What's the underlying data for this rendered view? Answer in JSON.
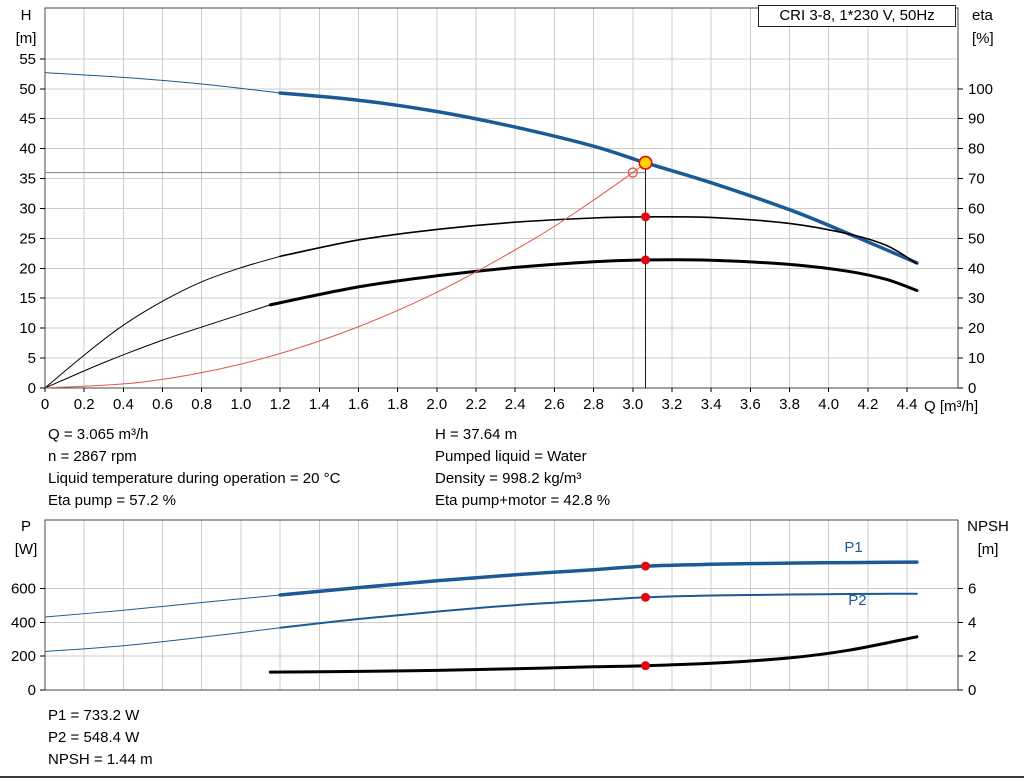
{
  "colors": {
    "curve_blue": "#1c5a96",
    "curve_black": "#000000",
    "system_red": "#e0564a",
    "marker_red": "#e30613",
    "duty_yellow": "#ffd700",
    "grid": "#cccccc",
    "frame": "#444444",
    "reference_gray": "#808080",
    "reference_dark": "#1a1a1a"
  },
  "chart_data": [
    {
      "type": "line",
      "name": "qh-eta-chart",
      "title": "CRI 3-8, 1*230 V, 50Hz",
      "x_axis": {
        "label": "Q [m³/h]",
        "min": 0,
        "max": 4.66,
        "tick_step": 0.2,
        "tick_end": 4.4,
        "show_labels": true
      },
      "y_left": {
        "label_lines": [
          "H",
          "[m]"
        ],
        "min": 0,
        "max": 63.5,
        "tick_step": 5,
        "tick_end": 55
      },
      "y_right": {
        "label_lines": [
          "eta",
          "[%]"
        ],
        "min": 0,
        "max": 127,
        "tick_step": 10,
        "tick_end": 100
      },
      "grid": true,
      "series": [
        {
          "name": "pump-curve-lead",
          "axis": "left",
          "color": "curve_blue",
          "width": 1,
          "points": [
            [
              0,
              52.7
            ],
            [
              0.4,
              51.9
            ],
            [
              0.8,
              50.8
            ],
            [
              1.2,
              49.3
            ]
          ]
        },
        {
          "name": "pump-curve",
          "axis": "left",
          "color": "curve_blue",
          "width": 3.5,
          "points": [
            [
              1.2,
              49.3
            ],
            [
              1.6,
              48.1
            ],
            [
              2.0,
              46.2
            ],
            [
              2.4,
              43.6
            ],
            [
              2.8,
              40.4
            ],
            [
              3.065,
              37.64
            ],
            [
              3.4,
              34.3
            ],
            [
              3.8,
              29.8
            ],
            [
              4.1,
              25.8
            ],
            [
              4.45,
              20.9
            ]
          ]
        },
        {
          "name": "eta-pump-lead",
          "axis": "right",
          "color": "curve_black",
          "width": 1,
          "points": [
            [
              0,
              0
            ],
            [
              0.2,
              11
            ],
            [
              0.4,
              21
            ],
            [
              0.6,
              29
            ],
            [
              0.8,
              35.5
            ],
            [
              1.0,
              40.2
            ],
            [
              1.2,
              44
            ]
          ]
        },
        {
          "name": "eta-pump-curve",
          "axis": "right",
          "color": "curve_black",
          "width": 1.6,
          "points": [
            [
              1.2,
              44
            ],
            [
              1.6,
              49.5
            ],
            [
              2.0,
              53
            ],
            [
              2.4,
              55.4
            ],
            [
              2.8,
              56.8
            ],
            [
              3.065,
              57.2
            ],
            [
              3.4,
              57.0
            ],
            [
              3.8,
              55.0
            ],
            [
              4.1,
              51.5
            ],
            [
              4.3,
              47.5
            ],
            [
              4.45,
              41.5
            ]
          ]
        },
        {
          "name": "eta-pump-motor-lead",
          "axis": "right",
          "color": "curve_black",
          "width": 1,
          "points": [
            [
              0,
              0
            ],
            [
              0.3,
              8.5
            ],
            [
              0.6,
              16
            ],
            [
              0.9,
              22.5
            ],
            [
              1.15,
              27.8
            ]
          ]
        },
        {
          "name": "eta-pump-motor-curve",
          "axis": "right",
          "color": "curve_black",
          "width": 3,
          "points": [
            [
              1.15,
              27.8
            ],
            [
              1.6,
              33.8
            ],
            [
              2.0,
              37.5
            ],
            [
              2.4,
              40.3
            ],
            [
              2.8,
              42.2
            ],
            [
              3.065,
              42.8
            ],
            [
              3.4,
              42.7
            ],
            [
              3.8,
              41.3
            ],
            [
              4.1,
              39.0
            ],
            [
              4.3,
              36.2
            ],
            [
              4.45,
              32.6
            ]
          ]
        },
        {
          "name": "system-curve",
          "axis": "left",
          "color": "system_red",
          "width": 1,
          "points": [
            [
              0,
              0
            ],
            [
              0.5,
              1.0
            ],
            [
              1.0,
              4.0
            ],
            [
              1.5,
              9.0
            ],
            [
              2.0,
              16.0
            ],
            [
              2.5,
              25.0
            ],
            [
              2.8,
              31.4
            ],
            [
              3.0,
              36.0
            ],
            [
              3.065,
              37.6
            ]
          ]
        }
      ],
      "reference": {
        "hline": {
          "v": 36.0,
          "q_start": 0,
          "q_end": 3.065
        },
        "vline": {
          "q": 3.065,
          "v_top": 37.64
        }
      },
      "markers": [
        {
          "name": "requested-duty-point",
          "axis": "left",
          "q": 3.0,
          "v": 36.0,
          "style": "open-red"
        },
        {
          "name": "duty-point",
          "axis": "left",
          "q": 3.065,
          "v": 37.64,
          "style": "duty"
        },
        {
          "name": "eta-pump-operating-point",
          "axis": "right",
          "q": 3.065,
          "v": 57.2,
          "style": "red-dot"
        },
        {
          "name": "eta-pump-motor-operating-point",
          "axis": "right",
          "q": 3.065,
          "v": 42.8,
          "style": "red-dot"
        }
      ],
      "labels": []
    },
    {
      "type": "line",
      "name": "power-npsh-chart",
      "title": "",
      "x_axis": {
        "label": "",
        "min": 0,
        "max": 4.66,
        "tick_step": 0.2,
        "tick_end": 4.4,
        "show_labels": false
      },
      "y_left": {
        "label_lines": [
          "P",
          "[W]"
        ],
        "min": 0,
        "max": 1006,
        "tick_step": 200,
        "tick_end": 600
      },
      "y_right": {
        "label_lines": [
          "NPSH",
          "[m]"
        ],
        "min": 0,
        "max": 10.06,
        "tick_step": 2,
        "tick_end": 6
      },
      "grid": true,
      "series": [
        {
          "name": "p1-lead",
          "axis": "left",
          "color": "curve_blue",
          "width": 1,
          "points": [
            [
              0,
              432
            ],
            [
              0.4,
              472
            ],
            [
              0.8,
              518
            ],
            [
              1.2,
              562
            ]
          ]
        },
        {
          "name": "p1-curve",
          "axis": "left",
          "color": "curve_blue",
          "width": 3.5,
          "points": [
            [
              1.2,
              562
            ],
            [
              1.6,
              606
            ],
            [
              2.0,
              646
            ],
            [
              2.4,
              682
            ],
            [
              2.8,
              712
            ],
            [
              3.065,
              733.2
            ],
            [
              3.4,
              744
            ],
            [
              3.8,
              751
            ],
            [
              4.1,
              754
            ],
            [
              4.45,
              757
            ]
          ]
        },
        {
          "name": "p2-lead",
          "axis": "left",
          "color": "curve_blue",
          "width": 1,
          "points": [
            [
              0,
              228
            ],
            [
              0.4,
              262
            ],
            [
              0.8,
              312
            ],
            [
              1.2,
              368
            ]
          ]
        },
        {
          "name": "p2-curve",
          "axis": "left",
          "color": "curve_blue",
          "width": 2,
          "points": [
            [
              1.2,
              368
            ],
            [
              1.6,
              420
            ],
            [
              2.0,
              464
            ],
            [
              2.4,
              502
            ],
            [
              2.8,
              530
            ],
            [
              3.065,
              548.4
            ],
            [
              3.4,
              559
            ],
            [
              3.8,
              565
            ],
            [
              4.1,
              568
            ],
            [
              4.45,
              570
            ]
          ]
        },
        {
          "name": "npsh-curve",
          "axis": "right",
          "color": "curve_black",
          "width": 3,
          "points": [
            [
              1.15,
              1.06
            ],
            [
              1.6,
              1.1
            ],
            [
              2.0,
              1.16
            ],
            [
              2.4,
              1.26
            ],
            [
              2.8,
              1.37
            ],
            [
              3.065,
              1.44
            ],
            [
              3.4,
              1.58
            ],
            [
              3.8,
              1.9
            ],
            [
              4.1,
              2.35
            ],
            [
              4.45,
              3.15
            ]
          ]
        }
      ],
      "markers": [
        {
          "name": "p1-operating-point",
          "axis": "left",
          "q": 3.065,
          "v": 733.2,
          "style": "red-dot"
        },
        {
          "name": "p2-operating-point",
          "axis": "left",
          "q": 3.065,
          "v": 548.4,
          "style": "red-dot"
        },
        {
          "name": "npsh-operating-point",
          "axis": "right",
          "q": 3.065,
          "v": 1.44,
          "style": "red-dot"
        }
      ],
      "labels": [
        {
          "name": "p1-curve-label",
          "text": "P1",
          "axis": "left",
          "q": 4.08,
          "v": 818,
          "color": "curve_blue"
        },
        {
          "name": "p2-curve-label",
          "text": "P2",
          "axis": "left",
          "q": 4.1,
          "v": 503,
          "color": "curve_blue"
        }
      ]
    }
  ],
  "duty_results": {
    "left": [
      "Q = 3.065 m³/h",
      "n = 2867 rpm",
      "Liquid temperature during operation = 20 °C",
      "Eta pump = 57.2 %"
    ],
    "right": [
      "H = 37.64 m",
      "Pumped liquid = Water",
      "Density = 998.2 kg/m³",
      "Eta pump+motor = 42.8 %"
    ]
  },
  "power_results": [
    "P1 = 733.2 W",
    "P2 = 548.4 W",
    "NPSH = 1.44 m"
  ]
}
